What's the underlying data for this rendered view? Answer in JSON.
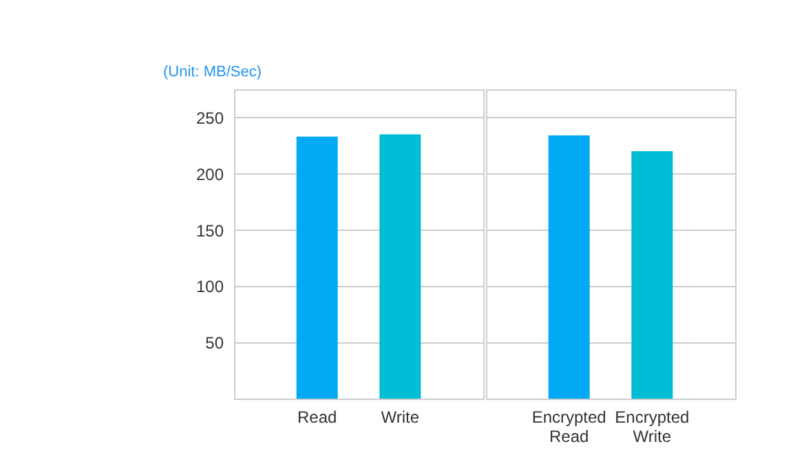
{
  "chart_data": [
    {
      "type": "bar",
      "ylabel": "(Unit: MB/Sec)",
      "categories": [
        "Read",
        "Write"
      ],
      "values": [
        233,
        235
      ],
      "colors": [
        "#03a9f4",
        "#00bcd4"
      ],
      "ylim": [
        0,
        275
      ],
      "yticks": [
        50,
        100,
        150,
        200,
        250
      ],
      "grid": "y"
    },
    {
      "type": "bar",
      "categories": [
        "Encrypted Read",
        "Encrypted Write"
      ],
      "values": [
        234,
        220
      ],
      "colors": [
        "#03a9f4",
        "#00bcd4"
      ],
      "ylim": [
        0,
        275
      ],
      "yticks": [
        50,
        100,
        150,
        200,
        250
      ],
      "grid": "y",
      "tick_labels": "x"
    }
  ]
}
